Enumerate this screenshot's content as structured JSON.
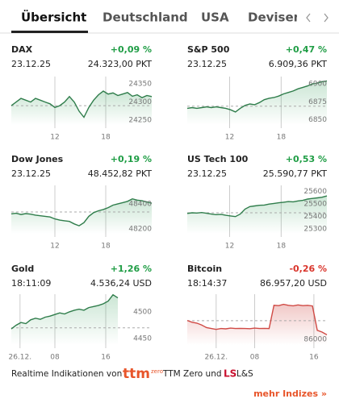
{
  "tabs": [
    "Übersicht",
    "Deutschland",
    "USA",
    "Devisen"
  ],
  "cards": [
    {
      "name": "DAX",
      "change": "+0,09 %",
      "time": "23.12.25",
      "price": "24.323,00 PKT",
      "chart_data": {
        "type": "line",
        "color": "#2f7d4b",
        "xlim": [
          0,
          29
        ],
        "ylim": [
          24237,
          24370
        ],
        "yticks": [
          24350,
          24300,
          24250
        ],
        "xticks": [
          {
            "value": 9,
            "label": "12"
          },
          {
            "value": 19.5,
            "label": "18"
          }
        ],
        "reference": 24290,
        "values": [
          24290,
          24300,
          24310,
          24305,
          24300,
          24310,
          24305,
          24300,
          24295,
          24285,
          24290,
          24300,
          24315,
          24300,
          24275,
          24258,
          24285,
          24305,
          24320,
          24330,
          24322,
          24325,
          24318,
          24322,
          24326,
          24316,
          24320,
          24312,
          24318,
          24315
        ]
      }
    },
    {
      "name": "S&P 500",
      "change": "+0,47 %",
      "time": "23.12.25",
      "price": "6.909,36 PKT",
      "chart_data": {
        "type": "line",
        "color": "#2f7d4b",
        "xlim": [
          0,
          29
        ],
        "ylim": [
          6843,
          6910
        ],
        "yticks": [
          6900,
          6875,
          6850
        ],
        "xticks": [
          {
            "value": 8.8,
            "label": "12"
          },
          {
            "value": 19.5,
            "label": "18"
          }
        ],
        "reference": 6869,
        "values": [
          6866,
          6867,
          6866,
          6867,
          6868,
          6867,
          6868,
          6867,
          6866,
          6864,
          6861,
          6866,
          6870,
          6872,
          6871,
          6874,
          6878,
          6880,
          6881,
          6883,
          6886,
          6888,
          6890,
          6893,
          6895,
          6897,
          6900,
          6901,
          6903,
          6904
        ]
      }
    },
    {
      "name": "Dow Jones",
      "change": "+0,19 %",
      "time": "23.12.25",
      "price": "48.452,82 PKT",
      "chart_data": {
        "type": "line",
        "color": "#2f7d4b",
        "xlim": [
          0,
          29
        ],
        "ylim": [
          48161,
          48548
        ],
        "yticks": [
          48400,
          48200
        ],
        "xticks": [
          {
            "value": 9,
            "label": "12"
          },
          {
            "value": 19.5,
            "label": "18"
          }
        ],
        "reference": 48335,
        "values": [
          48320,
          48325,
          48315,
          48322,
          48318,
          48310,
          48305,
          48300,
          48295,
          48280,
          48270,
          48265,
          48260,
          48240,
          48225,
          48250,
          48300,
          48330,
          48345,
          48355,
          48370,
          48390,
          48400,
          48410,
          48420,
          48440,
          48430,
          48425,
          48415,
          48405
        ]
      }
    },
    {
      "name": "US Tech 100",
      "change": "+0,53 %",
      "time": "23.12.25",
      "price": "25.590,77 PKT",
      "chart_data": {
        "type": "line",
        "color": "#2f7d4b",
        "xlim": [
          0,
          29
        ],
        "ylim": [
          25262,
          25650
        ],
        "yticks": [
          25600,
          25500,
          25400,
          25300
        ],
        "xticks": [
          {
            "value": 8.8,
            "label": "12"
          },
          {
            "value": 19.5,
            "label": "18"
          }
        ],
        "reference": 25430,
        "values": [
          25425,
          25430,
          25428,
          25432,
          25426,
          25420,
          25415,
          25418,
          25410,
          25405,
          25400,
          25420,
          25460,
          25480,
          25485,
          25490,
          25492,
          25500,
          25505,
          25510,
          25515,
          25520,
          25518,
          25525,
          25530,
          25540,
          25545,
          25550,
          25555,
          25565
        ]
      }
    },
    {
      "name": "Gold",
      "change": "+1,26 %",
      "time": "18:11:09",
      "price": "4.536,24 USD",
      "chart_data": {
        "type": "line",
        "color": "#2f7d4b",
        "xlim": [
          0,
          29
        ],
        "ylim": [
          4438,
          4533
        ],
        "yticks": [
          4500,
          4450
        ],
        "xticks": [
          {
            "value": 1.8,
            "label": "26.12."
          },
          {
            "value": 9,
            "label": "08"
          },
          {
            "value": 19.5,
            "label": "16"
          }
        ],
        "reference": 4470,
        "values": [
          4468,
          4475,
          4480,
          4478,
          4485,
          4488,
          4486,
          4490,
          4492,
          4495,
          4498,
          4496,
          4500,
          4503,
          4505,
          4503,
          4508,
          4510,
          4512,
          4515,
          4520,
          4532,
          4526
        ]
      }
    },
    {
      "name": "Bitcoin",
      "change": "-0,26 %",
      "time": "18:14:37",
      "price": "86.957,20 USD",
      "chart_data": {
        "type": "line",
        "color": "#d04a45",
        "xlim": [
          0,
          29
        ],
        "ylim": [
          85680,
          88520
        ],
        "yticks": [
          86000
        ],
        "xticks": [
          {
            "value": 6,
            "label": "26.12."
          },
          {
            "value": 14,
            "label": "08"
          },
          {
            "value": 26.3,
            "label": "16"
          }
        ],
        "reference": 87040,
        "values": [
          87050,
          86950,
          86900,
          86800,
          86650,
          86600,
          86550,
          86600,
          86580,
          86620,
          86600,
          86610,
          86600,
          86590,
          86620,
          86600,
          86610,
          86600,
          87900,
          87880,
          87950,
          87900,
          87870,
          87920,
          87880,
          87900,
          87860,
          86500,
          86400,
          86250
        ]
      }
    }
  ],
  "footer": {
    "text": "Realtime Indikationen von",
    "ttm": "ttm",
    "zero": "zero",
    "middle": "TTM Zero und",
    "ls": "LS",
    "end": "L&S"
  },
  "more": "mehr Indizes »"
}
